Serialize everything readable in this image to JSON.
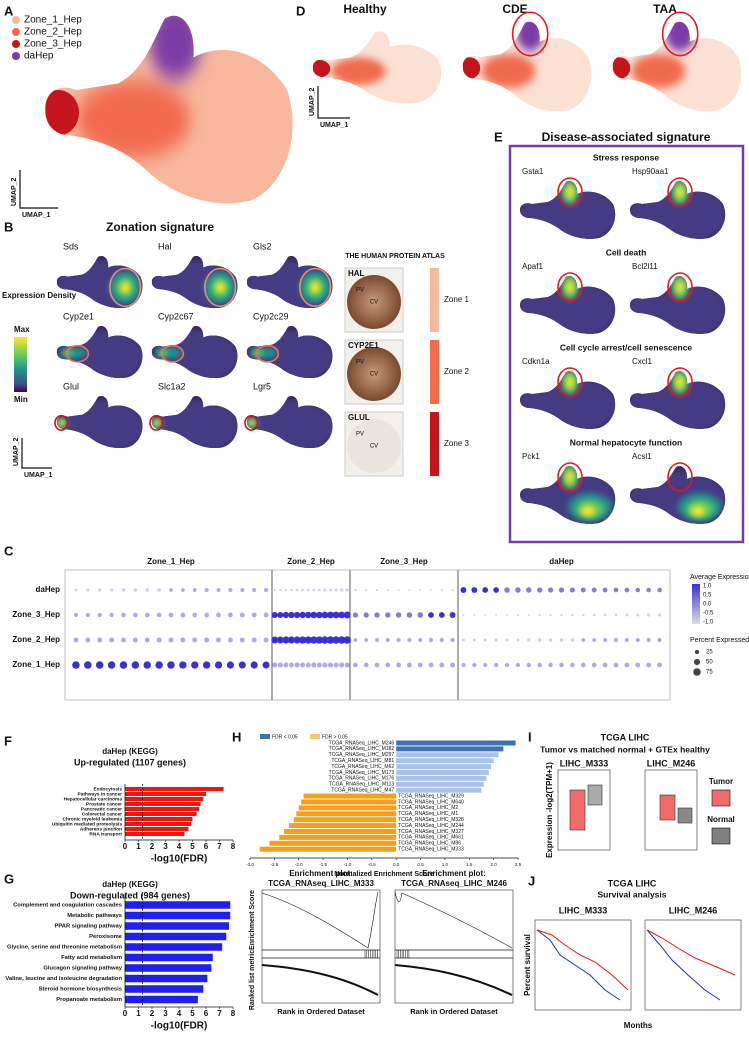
{
  "panels": {
    "A": {
      "letter": "A",
      "legend": [
        {
          "name": "Zone_1_Hep",
          "color": "#f7b89d"
        },
        {
          "name": "Zone_2_Hep",
          "color": "#f26b4d"
        },
        {
          "name": "Zone_3_Hep",
          "color": "#c4141c"
        },
        {
          "name": "daHep",
          "color": "#7b3aa6"
        }
      ],
      "x_axis": "UMAP_1",
      "y_axis": "UMAP_2"
    },
    "D": {
      "letter": "D",
      "conditions": [
        "Healthy",
        "CDE",
        "TAA"
      ],
      "x_axis": "UMAP_1",
      "y_axis": "UMAP_2"
    },
    "B": {
      "letter": "B",
      "title": "Zonation signature",
      "genes": [
        [
          "Sds",
          "Hal",
          "Gls2"
        ],
        [
          "Cyp2e1",
          "Cyp2c67",
          "Cyp2c29"
        ],
        [
          "Glul",
          "Slc1a2",
          "Lgr5"
        ]
      ],
      "density_label": "Expression Density",
      "max_label": "Max",
      "min_label": "Min",
      "x_axis": "UMAP_1",
      "y_axis": "UMAP_2",
      "atlas": "THE HUMAN PROTEIN ATLAS",
      "stains": [
        "HAL",
        "CYP2E1",
        "GLUL"
      ],
      "zones": [
        {
          "name": "Zone 1",
          "color": "#f7b89d"
        },
        {
          "name": "Zone 2",
          "color": "#f26b4d"
        },
        {
          "name": "Zone 3",
          "color": "#c4141c"
        }
      ],
      "pv": "PV",
      "cv": "CV"
    },
    "E": {
      "letter": "E",
      "title": "Disease-associated signature",
      "groups": [
        {
          "title": "Stress response",
          "genes": [
            "Gsta1",
            "Hsp90aa1"
          ]
        },
        {
          "title": "Cell death",
          "genes": [
            "Apaf1",
            "Bcl2l11"
          ]
        },
        {
          "title": "Cell cycle arrest/cell senescence",
          "genes": [
            "Cdkn1a",
            "Cxcl1"
          ]
        },
        {
          "title": "Normal hepatocyte function",
          "genes": [
            "Pck1",
            "Acsl1"
          ]
        }
      ]
    },
    "C": {
      "letter": "C",
      "groups": [
        "Zone_1_Hep",
        "Zone_2_Hep",
        "Zone_3_Hep",
        "daHep"
      ],
      "rows": [
        "daHep",
        "Zone_3_Hep",
        "Zone_2_Hep",
        "Zone_1_Hep"
      ],
      "expression_title": "Average Expression",
      "expression_ticks": [
        "1.0",
        "0.5",
        "0.0",
        "-0.5",
        "-1.0"
      ],
      "percent_title": "Percent Expressed",
      "percent_values": [
        25,
        50,
        75
      ]
    },
    "F": {
      "letter": "F",
      "title": "daHep (KEGG)",
      "subtitle": "Up-regulated (1107 genes)"
    },
    "G": {
      "letter": "G",
      "title": "daHep (KEGG)",
      "subtitle": "Down-regulated (984 genes)"
    },
    "H": {
      "letter": "H",
      "legend": [
        {
          "name": "FDR < 0.05",
          "color": "#3f72b5"
        },
        {
          "name": "FDR > 0.05",
          "color": "#f5c77e"
        }
      ]
    },
    "enrichment": {
      "title": "Enrichment plot:",
      "sets": [
        {
          "name": "TCGA_RNAseq_LIHC_M333",
          "color": "#1f2fc0"
        },
        {
          "name": "TCGA_RNAseq_LIHC_M246",
          "color": "#e01b1b"
        }
      ],
      "score_label": "Enrichment Score",
      "metric_label": "Ranked list metric",
      "x_axis": "Rank in Ordered Dataset"
    },
    "I": {
      "letter": "I",
      "title": "TCGA LIHC",
      "subtitle": "Tumor vs matched normal + GTEx healthy",
      "sets": [
        {
          "name": "LIHC_M333",
          "color": "#1f2fc0"
        },
        {
          "name": "LIHC_M246",
          "color": "#e01b1b"
        }
      ],
      "y_axis": "Expression -log2(TPM+1)",
      "legend": [
        {
          "name": "Tumor",
          "color": "#f26b6b"
        },
        {
          "name": "Normal",
          "color": "#808080"
        }
      ]
    },
    "J": {
      "letter": "J",
      "title": "TCGA LIHC",
      "subtitle": "Survival analysis",
      "sets": [
        {
          "name": "LIHC_M333",
          "color": "#1f2fc0"
        },
        {
          "name": "LIHC_M246",
          "color": "#e01b1b"
        }
      ],
      "y_axis": "Percent survival",
      "x_axis": "Months"
    }
  },
  "chart_data": [
    {
      "type": "bar",
      "categories": [
        "Endocytosis",
        "Pathways in cancer",
        "Hepatocellular carcinoma",
        "Prostate cancer",
        "Pancreatic cancer",
        "Colorectal cancer",
        "Chronic myeloid leukemia",
        "Ubiquitin mediated proteolysis",
        "Adherens junction",
        "RNA transport"
      ],
      "values": [
        7.3,
        6.0,
        5.8,
        5.6,
        5.5,
        5.3,
        5.0,
        4.9,
        4.7,
        4.4
      ],
      "color": "#f0140f",
      "xlim": [
        0,
        8
      ],
      "xticks": [
        0,
        1,
        2,
        3,
        4,
        5,
        6,
        7,
        8
      ],
      "xlabel": "-log10(FDR)",
      "threshold": 1.3
    },
    {
      "type": "bar",
      "categories": [
        "Complement and coagulation cascades",
        "Metabolic pathways",
        "PPAR signaling pathway",
        "Peroxisome",
        "Glycine, serine and threonine metabolism",
        "Fatty acid metabolism",
        "Glucagon signaling pathway",
        "Valine, leucine and isoleucine degradation",
        "Steroid hormone biosynthesis",
        "Propanoate metabolism"
      ],
      "values": [
        7.8,
        7.8,
        7.7,
        7.5,
        7.2,
        6.5,
        6.4,
        6.1,
        5.8,
        5.4
      ],
      "color": "#1f1ff0",
      "xlim": [
        0,
        8
      ],
      "xticks": [
        0,
        1,
        2,
        3,
        4,
        5,
        6,
        7,
        8
      ],
      "xlabel": "-log10(FDR)",
      "threshold": 1.3
    },
    {
      "type": "bar",
      "categories": [
        "TCGA_RNASeq_LIHC_M246",
        "TCGA_RNASeq_LIHC_M182",
        "TCGA_RNASeq_LIHC_M297",
        "TCGA_RNASeq_LIHC_M81",
        "TCGA_RNASeq_LIHC_M62",
        "TCGA_RNASeq_LIHC_M173",
        "TCGA_RNASeq_LIHC_M176",
        "TCGA_RNASeq_LIHC_M113",
        "TCGA_RNASeq_LIHC_M47",
        "TCGA_RNASeq_LIHC_M329",
        "TCGA_RNASeq_LIHC_M640",
        "TCGA_RNASeq_LIHC_M2",
        "TCGA_RNASeq_LIHC_M1",
        "TCGA_RNASeq_LIHC_M328",
        "TCGA_RNASeq_LIHC_M244",
        "TCGA_RNASeq_LIHC_M327",
        "TCGA_RNASeq_LIHC_M661",
        "TCGA_RNASeq_LIHC_M86",
        "TCGA_RNASeq_LIHC_M333"
      ],
      "values": [
        2.45,
        2.2,
        2.1,
        2.0,
        1.95,
        1.9,
        1.85,
        1.8,
        1.75,
        -1.9,
        -1.95,
        -2.0,
        -2.05,
        -2.1,
        -2.2,
        -2.3,
        -2.4,
        -2.6,
        -2.8
      ],
      "colors": [
        "#3f72b5",
        "#3f72b5",
        "#a9c3e4",
        "#a9c3e4",
        "#a9c3e4",
        "#a9c3e4",
        "#a9c3e4",
        "#a9c3e4",
        "#a9c3e4",
        "#f5a01a",
        "#f5a01a",
        "#f5a01a",
        "#f5a01a",
        "#f5a01a",
        "#f5a01a",
        "#f5a01a",
        "#f5a01a",
        "#f5a01a",
        "#f5a01a"
      ],
      "label_colors": [
        "#e01b1b",
        "#222",
        "#222",
        "#222",
        "#222",
        "#222",
        "#222",
        "#222",
        "#222",
        "#222",
        "#222",
        "#222",
        "#222",
        "#222",
        "#222",
        "#222",
        "#222",
        "#222",
        "#1f2fc0"
      ],
      "xlim": [
        -3,
        2.5
      ],
      "xticks": [
        {
          "value": -3,
          "label": "-3.0"
        },
        -2.5,
        {
          "value": -2,
          "label": "-2.0"
        },
        -1.5,
        {
          "value": -1,
          "label": "-1.0"
        },
        -0.5,
        {
          "value": 0,
          "label": "0.0"
        },
        0.5,
        {
          "value": 1,
          "label": "1.0"
        },
        1.5,
        {
          "value": 2,
          "label": "2.0"
        },
        2.5
      ],
      "xlabel": "Normalized Enrichment Score"
    }
  ]
}
